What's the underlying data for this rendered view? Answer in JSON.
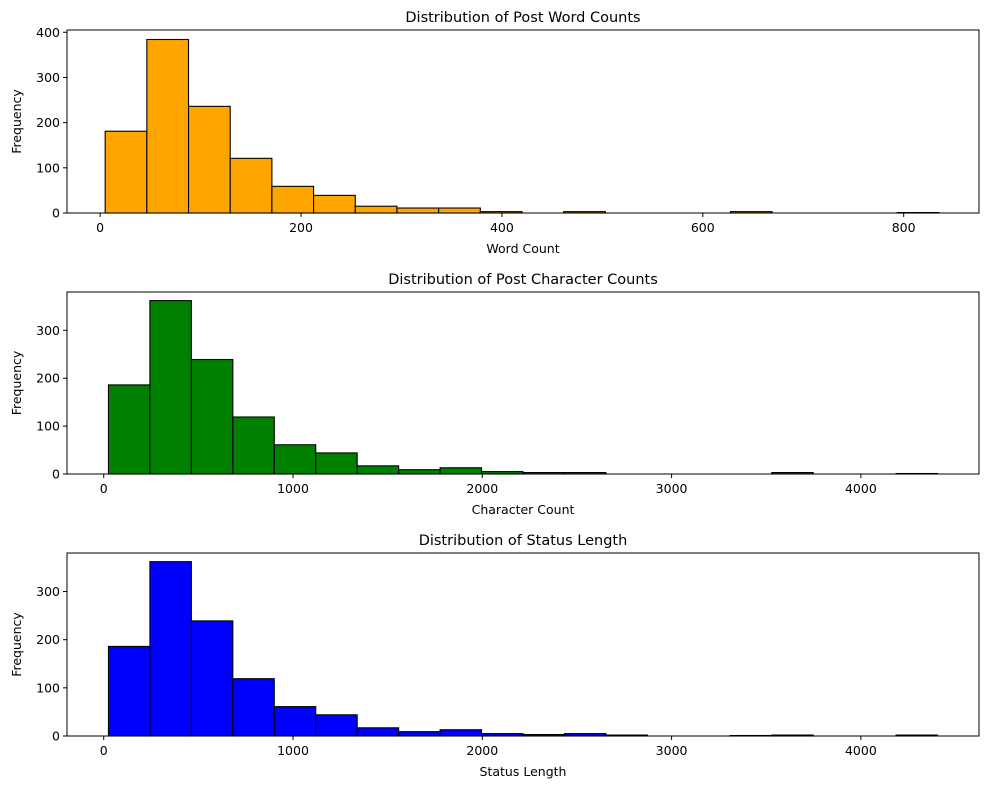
{
  "chart_data": [
    {
      "type": "bar",
      "title": "Distribution of Post Word Counts",
      "xlabel": "Word Count",
      "ylabel": "Frequency",
      "color": "#ffa500",
      "edgecolor": "#000000",
      "bin_edges": [
        5.0,
        46.5,
        88.0,
        129.5,
        171.0,
        212.5,
        254.0,
        295.5,
        337.0,
        378.5,
        420.0,
        461.5,
        503.0,
        544.5,
        586.0,
        627.5,
        669.0,
        710.5,
        752.0,
        793.5,
        835.0
      ],
      "values": [
        181,
        384,
        236,
        121,
        59,
        39,
        15,
        11,
        11,
        3,
        0,
        3,
        0,
        0,
        0,
        3,
        0,
        0,
        0,
        1
      ],
      "xlim": [
        -33,
        875
      ],
      "ylim": [
        0,
        405
      ],
      "xticks": [
        0,
        200,
        400,
        600,
        800
      ],
      "yticks": [
        0,
        100,
        200,
        300,
        400
      ]
    },
    {
      "type": "bar",
      "title": "Distribution of Post Character Counts",
      "xlabel": "Character Count",
      "ylabel": "Frequency",
      "color": "#008000",
      "edgecolor": "#000000",
      "bin_edges": [
        25,
        244,
        463,
        682,
        901,
        1120,
        1339,
        1558,
        1777,
        1996,
        2215,
        2434,
        2653,
        2872,
        3091,
        3310,
        3529,
        3748,
        3967,
        4186,
        4405
      ],
      "values": [
        186,
        362,
        239,
        119,
        61,
        44,
        17,
        9,
        13,
        5,
        3,
        3,
        0,
        0,
        0,
        0,
        3,
        0,
        0,
        1
      ],
      "xlim": [
        -194,
        4624
      ],
      "ylim": [
        0,
        380
      ],
      "xticks": [
        0,
        1000,
        2000,
        3000,
        4000
      ],
      "yticks": [
        0,
        100,
        200,
        300
      ]
    },
    {
      "type": "bar",
      "title": "Distribution of Status Length",
      "xlabel": "Status Length",
      "ylabel": "Frequency",
      "color": "#0000ff",
      "edgecolor": "#000000",
      "bin_edges": [
        25,
        244,
        463,
        682,
        901,
        1120,
        1339,
        1558,
        1777,
        1996,
        2215,
        2434,
        2653,
        2872,
        3091,
        3310,
        3529,
        3748,
        3967,
        4186,
        4405
      ],
      "values": [
        186,
        362,
        239,
        119,
        61,
        44,
        17,
        9,
        13,
        5,
        3,
        5,
        2,
        0,
        0,
        1,
        2,
        0,
        0,
        2
      ],
      "xlim": [
        -194,
        4624
      ],
      "ylim": [
        0,
        380
      ],
      "xticks": [
        0,
        1000,
        2000,
        3000,
        4000
      ],
      "yticks": [
        0,
        100,
        200,
        300
      ]
    }
  ]
}
